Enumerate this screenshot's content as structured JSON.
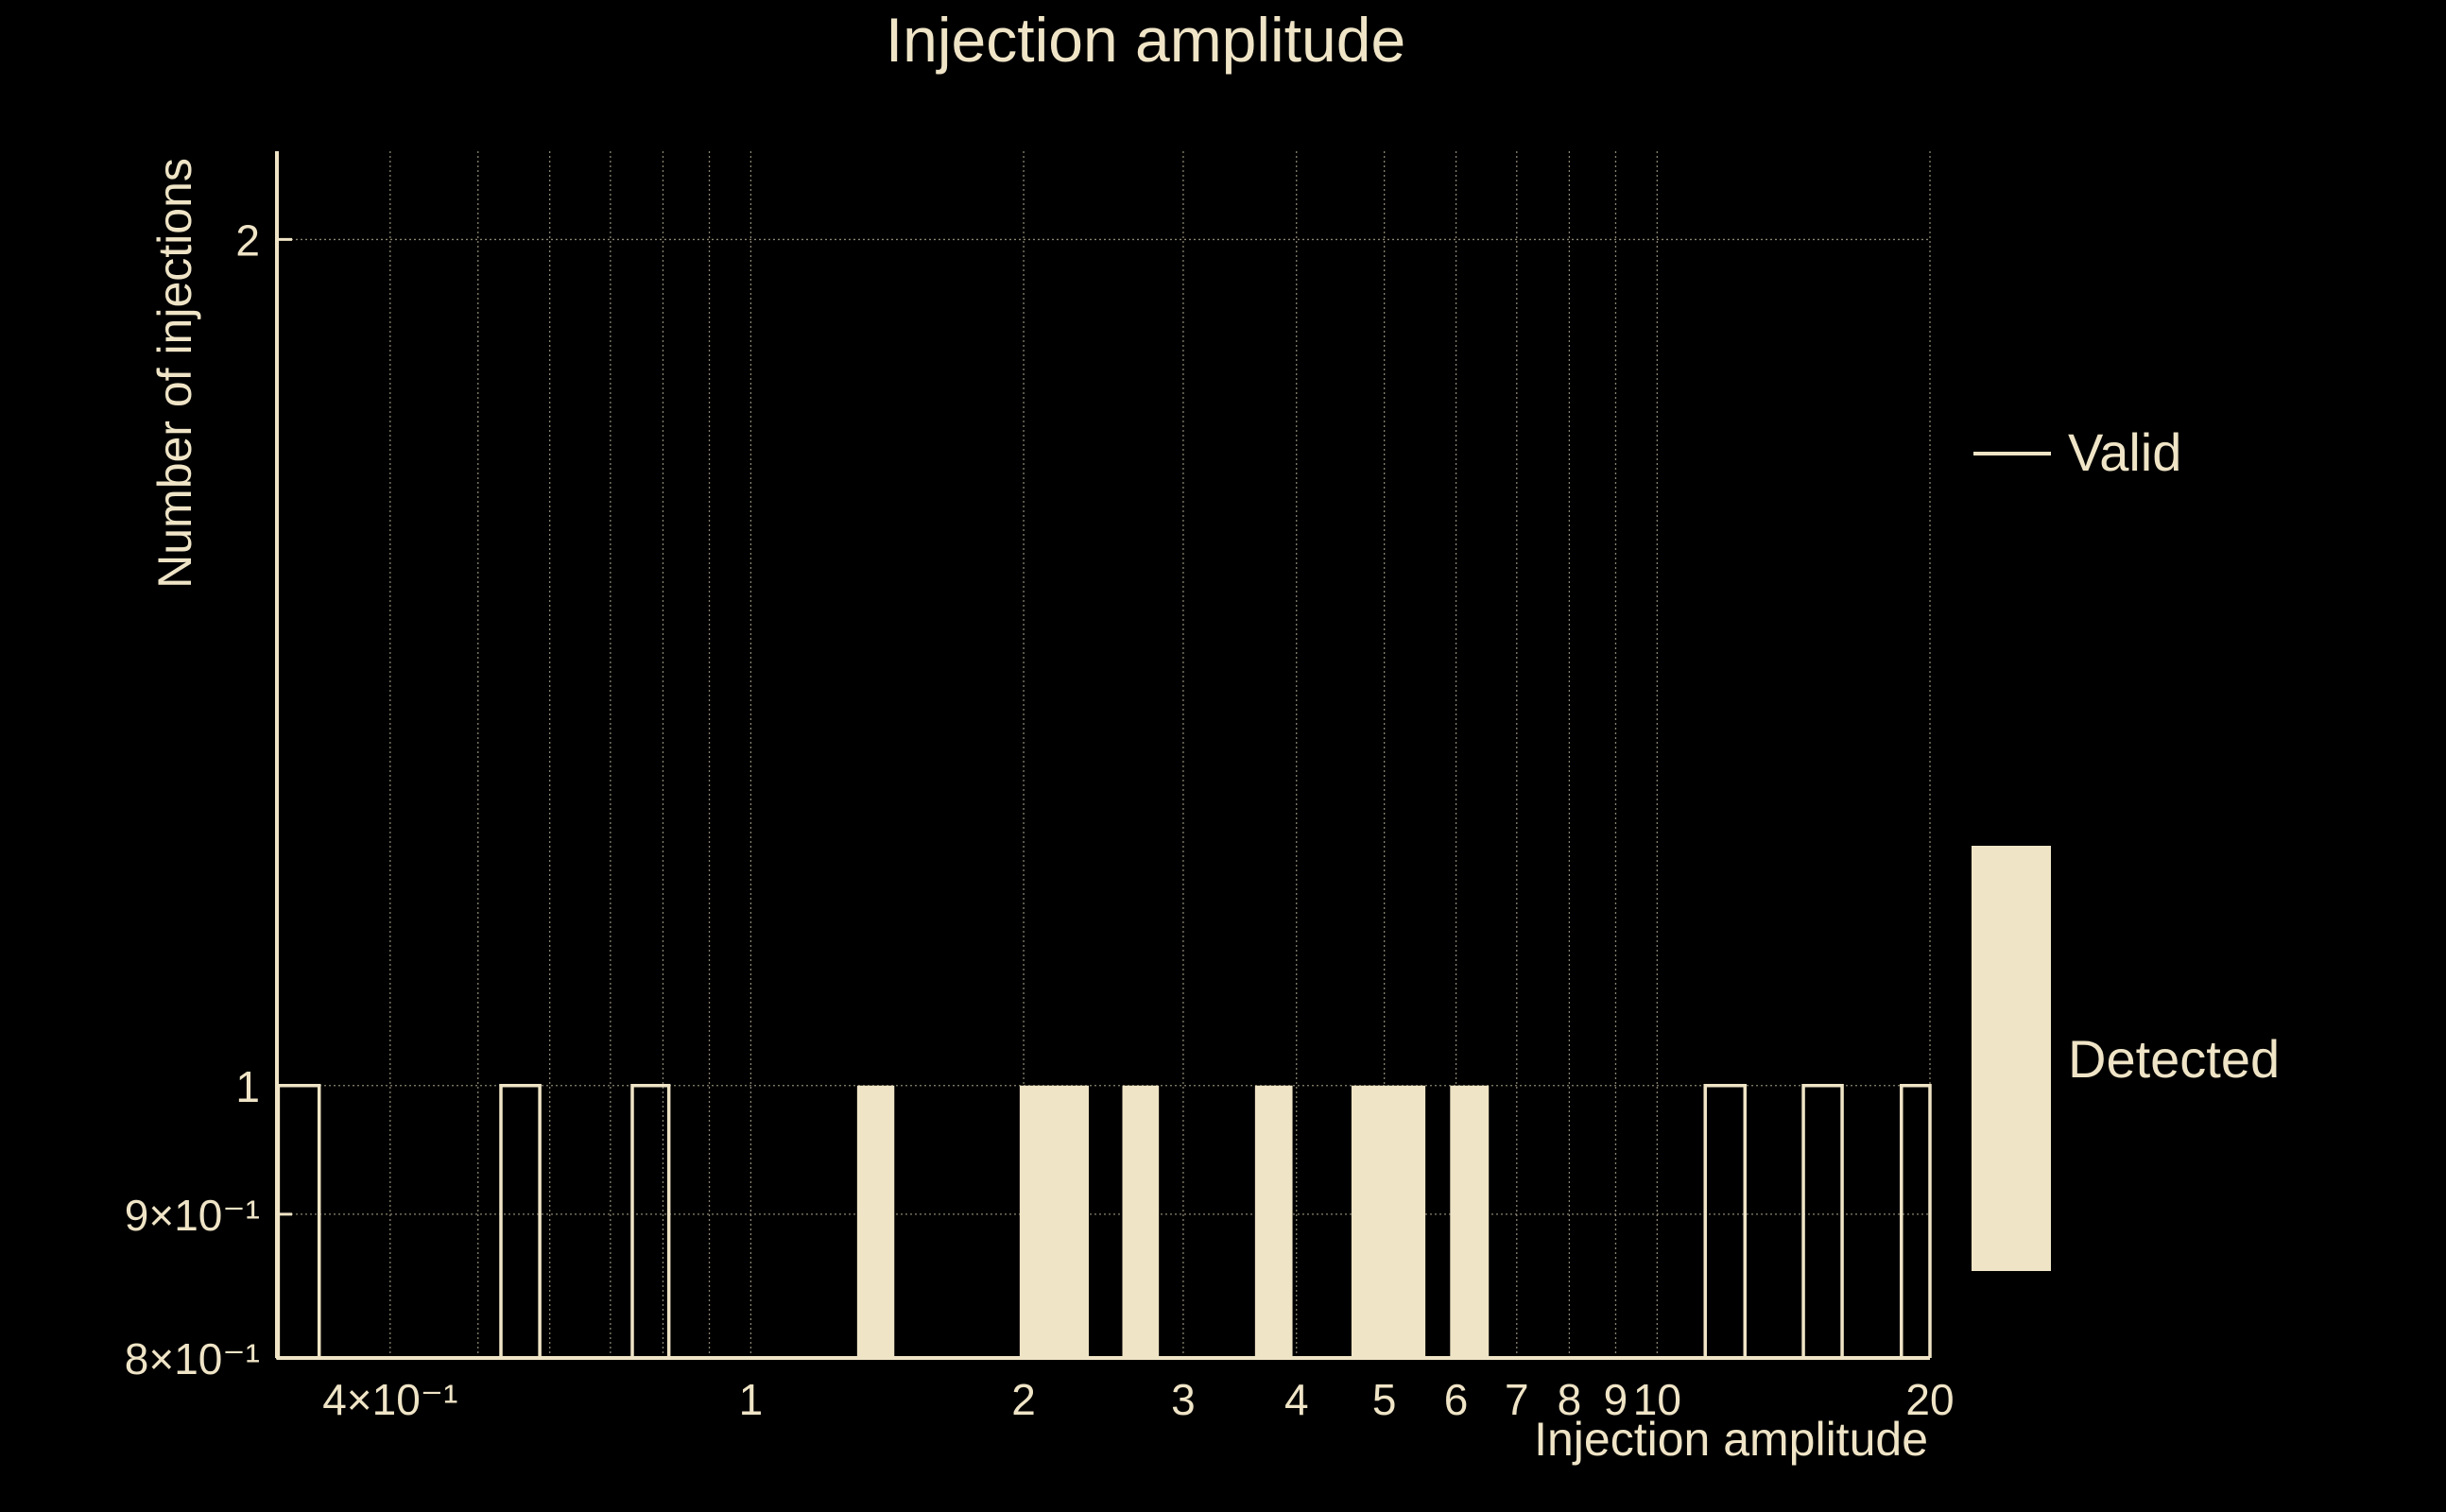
{
  "colors": {
    "background": "#000000",
    "foreground": "#efe4c6",
    "grid": "#8a8470"
  },
  "chart_data": {
    "type": "bar",
    "title": "Injection amplitude",
    "xlabel": "Injection amplitude",
    "ylabel": "Number of injections",
    "x_scale": "log",
    "y_scale": "log",
    "xlim": [
      0.3,
      20
    ],
    "ylim": [
      0.8,
      2.15
    ],
    "grid": true,
    "legend_position": "right",
    "x_ticks": [
      {
        "value": 0.4,
        "label": "4×10⁻¹"
      },
      {
        "value": 0.5,
        "label": ""
      },
      {
        "value": 0.6,
        "label": ""
      },
      {
        "value": 0.7,
        "label": ""
      },
      {
        "value": 0.8,
        "label": ""
      },
      {
        "value": 0.9,
        "label": ""
      },
      {
        "value": 1,
        "label": "1"
      },
      {
        "value": 2,
        "label": "2"
      },
      {
        "value": 3,
        "label": "3"
      },
      {
        "value": 4,
        "label": "4"
      },
      {
        "value": 5,
        "label": "5"
      },
      {
        "value": 6,
        "label": "6"
      },
      {
        "value": 7,
        "label": "7"
      },
      {
        "value": 8,
        "label": "8"
      },
      {
        "value": 9,
        "label": "9"
      },
      {
        "value": 10,
        "label": "10"
      },
      {
        "value": 20,
        "label": "20"
      }
    ],
    "y_ticks": [
      {
        "value": 0.8,
        "label": "8×10⁻¹"
      },
      {
        "value": 0.9,
        "label": "9×10⁻¹"
      },
      {
        "value": 1,
        "label": "1"
      },
      {
        "value": 2,
        "label": "2"
      }
    ],
    "series": [
      {
        "name": "Valid",
        "style": "outline",
        "bins": [
          {
            "x0": 0.301,
            "x1": 0.334,
            "count": 1
          },
          {
            "x0": 0.53,
            "x1": 0.585,
            "count": 1
          },
          {
            "x0": 0.74,
            "x1": 0.812,
            "count": 1
          },
          {
            "x0": 11.3,
            "x1": 12.5,
            "count": 1
          },
          {
            "x0": 14.5,
            "x1": 16.0,
            "count": 1
          },
          {
            "x0": 18.6,
            "x1": 20.5,
            "count": 1
          }
        ]
      },
      {
        "name": "Detected",
        "style": "filled",
        "bins": [
          {
            "x0": 1.31,
            "x1": 1.44,
            "count": 1
          },
          {
            "x0": 1.98,
            "x1": 2.36,
            "count": 1
          },
          {
            "x0": 2.57,
            "x1": 2.82,
            "count": 1
          },
          {
            "x0": 3.6,
            "x1": 3.96,
            "count": 1
          },
          {
            "x0": 4.6,
            "x1": 5.55,
            "count": 1
          },
          {
            "x0": 5.91,
            "x1": 6.52,
            "count": 1
          }
        ]
      }
    ]
  }
}
